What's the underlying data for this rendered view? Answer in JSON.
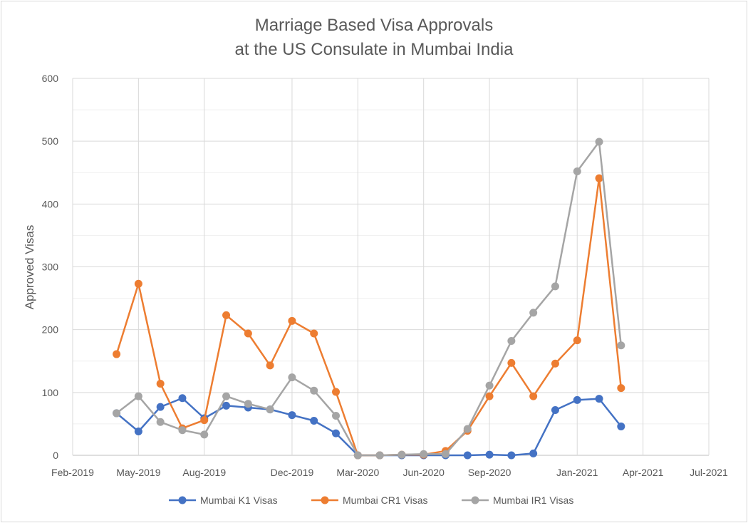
{
  "chart_data": {
    "type": "line",
    "title_lines": [
      "Marriage Based Visa Approvals",
      "at the US Consulate in Mumbai India"
    ],
    "ylabel": "Approved Visas",
    "xlabel": "",
    "ylim": [
      0,
      600
    ],
    "y_ticks": [
      0,
      100,
      200,
      300,
      400,
      500,
      600
    ],
    "x_ticks": [
      "Feb-2019",
      "May-2019",
      "Aug-2019",
      "Dec-2019",
      "Mar-2020",
      "Jun-2020",
      "Sep-2020",
      "Jan-2021",
      "Apr-2021",
      "Jul-2021"
    ],
    "grid": true,
    "legend_position": "bottom",
    "x": [
      "Apr-2019",
      "May-2019",
      "Jun-2019",
      "Jul-2019",
      "Aug-2019",
      "Sep-2019",
      "Oct-2019",
      "Nov-2019",
      "Dec-2019",
      "Jan-2020",
      "Feb-2020",
      "Mar-2020",
      "Apr-2020",
      "May-2020",
      "Jun-2020",
      "Jul-2020",
      "Aug-2020",
      "Sep-2020",
      "Oct-2020",
      "Nov-2020",
      "Dec-2020",
      "Jan-2021",
      "Feb-2021",
      "Mar-2021"
    ],
    "series": [
      {
        "name": "Mumbai K1 Visas",
        "color": "#4472c4",
        "values": [
          67,
          38,
          77,
          91,
          59,
          79,
          76,
          73,
          64,
          55,
          35,
          0,
          0,
          0,
          0,
          0,
          0,
          1,
          0,
          3,
          72,
          88,
          90,
          46
        ]
      },
      {
        "name": "Mumbai CR1 Visas",
        "color": "#ed7d31",
        "values": [
          161,
          273,
          114,
          43,
          56,
          223,
          194,
          143,
          214,
          194,
          101,
          0,
          0,
          1,
          1,
          7,
          39,
          94,
          147,
          94,
          146,
          183,
          441,
          107
        ]
      },
      {
        "name": "Mumbai IR1 Visas",
        "color": "#a5a5a5",
        "values": [
          67,
          94,
          53,
          40,
          33,
          94,
          82,
          73,
          124,
          103,
          63,
          0,
          0,
          1,
          2,
          2,
          42,
          111,
          182,
          227,
          269,
          452,
          499,
          175
        ]
      }
    ]
  }
}
